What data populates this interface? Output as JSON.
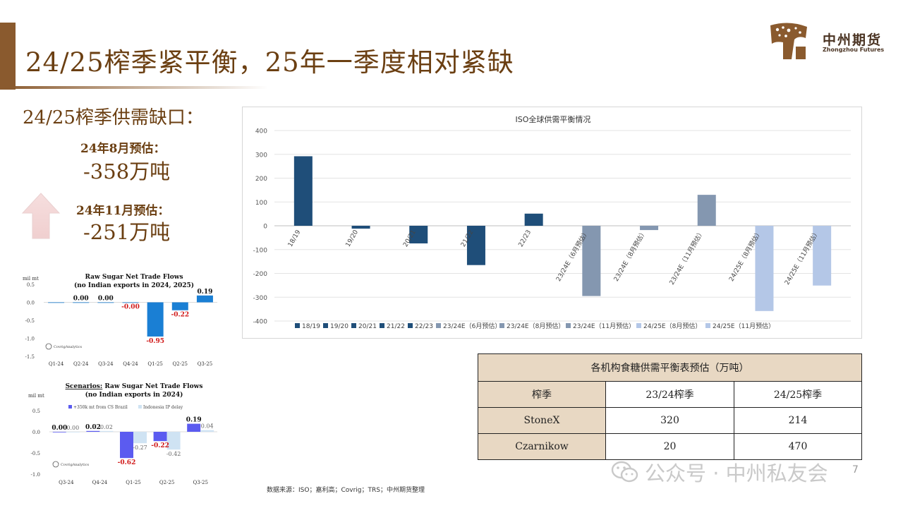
{
  "header": {
    "title": "24/25榨季紧平衡，25年一季度相对紧缺",
    "logo_cn": "中州期货",
    "logo_en": "Zhongzhou Futures"
  },
  "left_panel": {
    "gap_title": "24/25榨季供需缺口：",
    "estimate_aug_label": "24年8月预估：",
    "estimate_aug_value": "-358万吨",
    "estimate_nov_label": "24年11月预估：",
    "estimate_nov_value": "-251万吨",
    "arrow_icon": "up-arrow-icon"
  },
  "chart_data": [
    {
      "type": "bar",
      "title": "ISO全球供需平衡情况",
      "categories": [
        "18/19",
        "19/20",
        "20/21",
        "21/22",
        "22/23",
        "23/24E（6月预估）",
        "23/24E（8月预估）",
        "23/24E（11月预估）",
        "24/25E（8月预估）",
        "24/25E（11月预估）"
      ],
      "values": [
        292,
        -12,
        -74,
        -165,
        51,
        -295,
        -18,
        130,
        -358,
        -251
      ],
      "colors": [
        "#1f4e79",
        "#1f4e79",
        "#1f4e79",
        "#1f4e79",
        "#1f4e79",
        "#8497b0",
        "#8497b0",
        "#8497b0",
        "#b4c7e7",
        "#b4c7e7"
      ],
      "ylim": [
        -400,
        400
      ],
      "yticks": [
        400,
        300,
        200,
        100,
        0,
        -100,
        -200,
        -300,
        -400
      ],
      "grid": true,
      "legend": "bottom"
    },
    {
      "type": "bar",
      "title": "Raw Sugar Net Trade Flows",
      "subtitle": "(no Indian exports in 2024, 2025)",
      "ylabel": "mil mt",
      "categories": [
        "Q1-24",
        "Q2-24",
        "Q3-24",
        "Q4-24",
        "Q1-25",
        "Q2-25",
        "Q3-25"
      ],
      "values": [
        0.0,
        0.0,
        0.0,
        -0.0,
        -0.95,
        -0.22,
        0.19
      ],
      "labels": [
        "",
        "0.00",
        "0.00",
        "-0.00",
        "-0.95",
        "-0.22",
        "0.19"
      ],
      "ylim": [
        -1.5,
        0.5
      ],
      "yticks": [
        "0.5",
        "0.0",
        "-0.5",
        "-1.0",
        "-1.5"
      ],
      "bar_color": "#1a7fd4",
      "credit": "CovrigAnalytics"
    },
    {
      "type": "bar",
      "title": "Scenarios: Raw Sugar Net Trade Flows",
      "title_underlined": "Scenarios:",
      "title_rest": " Raw Sugar Net Trade Flows",
      "subtitle": "(no Indian exports in 2024)",
      "ylabel": "mil mt",
      "categories": [
        "Q3-24",
        "Q4-24",
        "Q1-25",
        "Q2-25",
        "Q3-25"
      ],
      "series": [
        {
          "name": "+350k mt from CS Brazil",
          "values": [
            0.0,
            0.02,
            -0.62,
            -0.22,
            0.19
          ],
          "labels": [
            "0.00",
            "0.02",
            "-0.62",
            "-0.22",
            "0.19"
          ],
          "color": "#5b5bf0"
        },
        {
          "name": "Indonesia IP delay",
          "values": [
            0.0,
            0.02,
            -0.27,
            -0.42,
            0.04
          ],
          "labels": [
            "0.00",
            "0.02",
            "-0.27",
            "-0.42",
            "0.04"
          ],
          "color": "#cfe3f3"
        }
      ],
      "ylim": [
        -1.0,
        0.5
      ],
      "yticks": [
        "0.5",
        "0.0",
        "-0.5",
        "-1.0"
      ],
      "credit": "CovrigAnalytics"
    }
  ],
  "table": {
    "title": "各机构食糖供需平衡表预估（万吨）",
    "headers": [
      "榨季",
      "23/24榨季",
      "24/25榨季"
    ],
    "rows": [
      [
        "StoneX",
        "320",
        "214"
      ],
      [
        "Czarnikow",
        "20",
        "470"
      ]
    ]
  },
  "footer": {
    "source": "数据来源：ISO；嘉利高；Covrig；TRS；中州期货整理",
    "watermark": "公众号 · 中州私友会",
    "page_number": "7"
  }
}
